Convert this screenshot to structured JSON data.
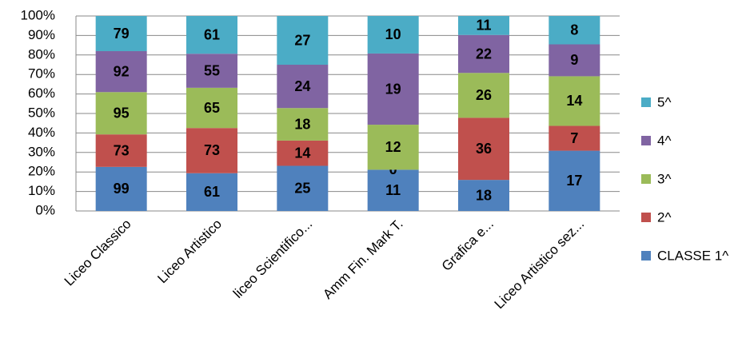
{
  "chart_data": {
    "type": "bar",
    "stacking": "percent",
    "categories": [
      "Liceo Classico",
      "Liceo Artistico",
      "liceo Scientifico...",
      "Amm Fin. Mark  T.",
      "Grafica e...",
      "Liceo  Artistico sez..."
    ],
    "series": [
      {
        "name": "CLASSE 1^",
        "color": "#4f81bd",
        "values": [
          99,
          61,
          25,
          11,
          18,
          17
        ]
      },
      {
        "name": "2^",
        "color": "#c0504d",
        "values": [
          73,
          73,
          14,
          0,
          36,
          7
        ]
      },
      {
        "name": "3^",
        "color": "#9bbb59",
        "values": [
          95,
          65,
          18,
          12,
          26,
          14
        ]
      },
      {
        "name": "4^",
        "color": "#8064a2",
        "values": [
          92,
          55,
          24,
          19,
          22,
          9
        ]
      },
      {
        "name": "5^",
        "color": "#4bacc6",
        "values": [
          79,
          61,
          27,
          10,
          11,
          8
        ]
      }
    ],
    "ylim": [
      0,
      100
    ],
    "yticks": [
      {
        "value": 0,
        "label": "0%"
      },
      {
        "value": 10,
        "label": "10%"
      },
      {
        "value": 20,
        "label": "20%"
      },
      {
        "value": 30,
        "label": "30%"
      },
      {
        "value": 40,
        "label": "40%"
      },
      {
        "value": 50,
        "label": "50%"
      },
      {
        "value": 60,
        "label": "60%"
      },
      {
        "value": 70,
        "label": "70%"
      },
      {
        "value": 80,
        "label": "80%"
      },
      {
        "value": 90,
        "label": "90%"
      },
      {
        "value": 100,
        "label": "100%"
      }
    ],
    "grid": true,
    "legend": "right",
    "value_label_color": "#ffff00"
  }
}
